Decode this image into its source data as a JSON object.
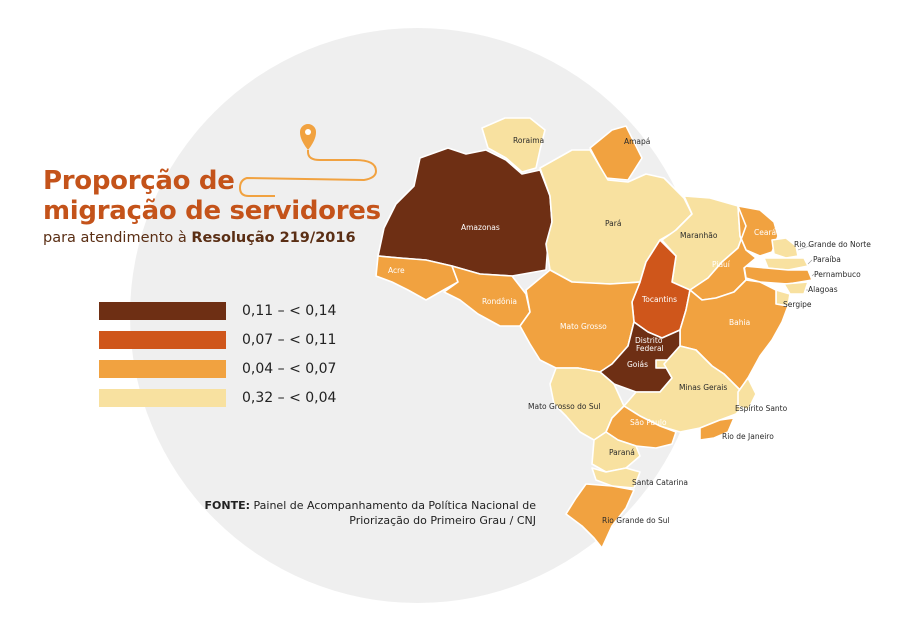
{
  "title": {
    "line1": "Proporção de",
    "line2": "migração de servidores",
    "subtitle_prefix": "para atendimento à ",
    "subtitle_bold": "Resolução 219/2016"
  },
  "legend": [
    {
      "label": "0,11 – < 0,14",
      "color": "#6e2f14"
    },
    {
      "label": "0,07 – < 0,11",
      "color": "#cf561b"
    },
    {
      "label": "0,04 – < 0,07",
      "color": "#f1a240"
    },
    {
      "label": "0,32 – < 0,04",
      "color": "#f8e1a0"
    }
  ],
  "source": {
    "bold": "FONTE:",
    "text": " Painel de Acompanhamento da Política Nacional de Priorização do Primeiro Grau / CNJ"
  },
  "states": {
    "roraima": {
      "label": "Roraima",
      "class": 3
    },
    "amapa": {
      "label": "Amapá",
      "class": 2
    },
    "amazonas": {
      "label": "Amazonas",
      "class": 0
    },
    "para": {
      "label": "Pará",
      "class": 3
    },
    "maranhao": {
      "label": "Maranhão",
      "class": 3
    },
    "ceara": {
      "label": "Ceará",
      "class": 2
    },
    "rio_grande_do_norte": {
      "label": "Rio Grande do Norte",
      "class": 3
    },
    "paraiba": {
      "label": "Paraíba",
      "class": 3
    },
    "pernambuco": {
      "label": "Pernambuco",
      "class": 2
    },
    "alagoas": {
      "label": "Alagoas",
      "class": 3
    },
    "sergipe": {
      "label": "Sergipe",
      "class": 3
    },
    "piaui": {
      "label": "Piauí",
      "class": 2
    },
    "acre": {
      "label": "Acre",
      "class": 2
    },
    "rondonia": {
      "label": "Rondônia",
      "class": 2
    },
    "tocantins": {
      "label": "Tocantins",
      "class": 1
    },
    "bahia": {
      "label": "Bahia",
      "class": 2
    },
    "mato_grosso": {
      "label": "Mato Grosso",
      "class": 2
    },
    "distrito_federal": {
      "label": "Distrito Federal",
      "line1": "Distrito",
      "line2": "Federal",
      "class": 3
    },
    "goias": {
      "label": "Goiás",
      "class": 0
    },
    "minas_gerais": {
      "label": "Minas Gerais",
      "class": 3
    },
    "espirito_santo": {
      "label": "Espírito Santo",
      "class": 3
    },
    "mato_grosso_do_sul": {
      "label": "Mato Grosso do Sul",
      "class": 3
    },
    "sao_paulo": {
      "label": "São Paulo",
      "class": 2
    },
    "rio_de_janeiro": {
      "label": "Rio de Janeiro",
      "class": 2
    },
    "parana": {
      "label": "Paraná",
      "class": 3
    },
    "santa_catarina": {
      "label": "Santa Catarina",
      "class": 3
    },
    "rio_grande_do_sul": {
      "label": "Rio Grande do Sul",
      "class": 2
    }
  }
}
